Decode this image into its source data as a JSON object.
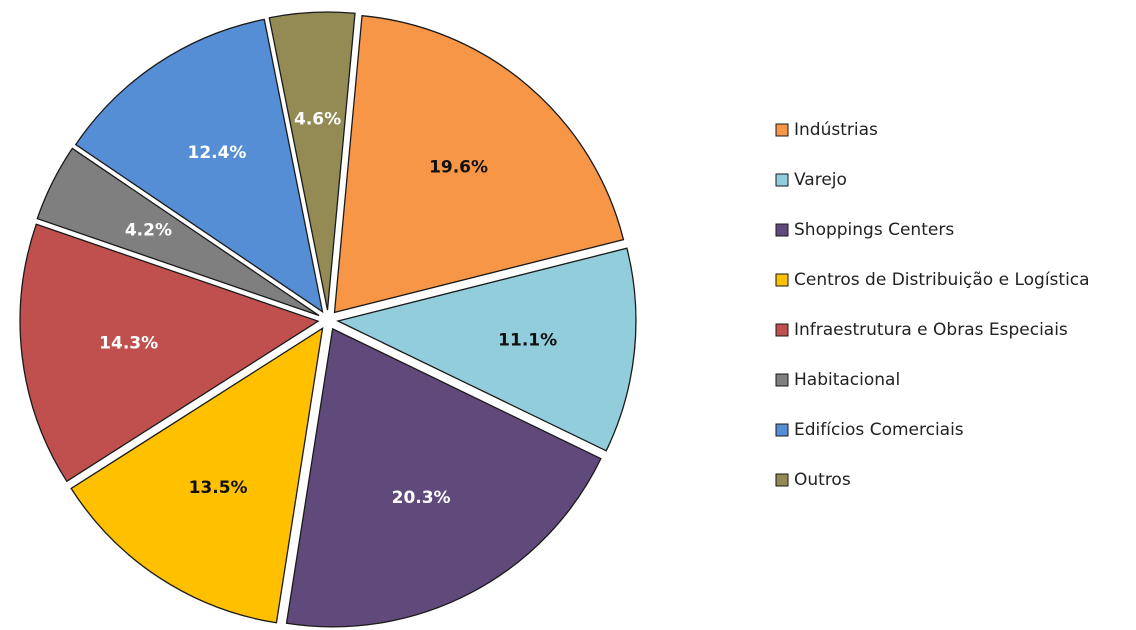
{
  "chart_data": {
    "type": "pie",
    "title": "",
    "categories": [
      "Indústrias",
      "Varejo",
      "Shoppings Centers",
      "Centros de Distribuição e Logística",
      "Infraestrutura e Obras Especiais",
      "Habitacional",
      "Edifícios Comerciais",
      "Outros"
    ],
    "values": [
      19.6,
      11.1,
      20.3,
      13.5,
      14.3,
      4.2,
      12.4,
      4.6
    ],
    "labels": [
      "19.6%",
      "11.1%",
      "20.3%",
      "13.5%",
      "14.3%",
      "4.2%",
      "12.4%",
      "4.6%"
    ],
    "colors": [
      "#F79646",
      "#92CDDC",
      "#604A7B",
      "#FFC000",
      "#C0504D",
      "#7F7F7F",
      "#558ED5",
      "#948A54"
    ],
    "label_colors": [
      "#111111",
      "#111111",
      "#FFFFFF",
      "#111111",
      "#FFFFFF",
      "#FFFFFF",
      "#FFFFFF",
      "#FFFFFF"
    ],
    "exploded": true,
    "legend": {
      "position": "right"
    }
  }
}
